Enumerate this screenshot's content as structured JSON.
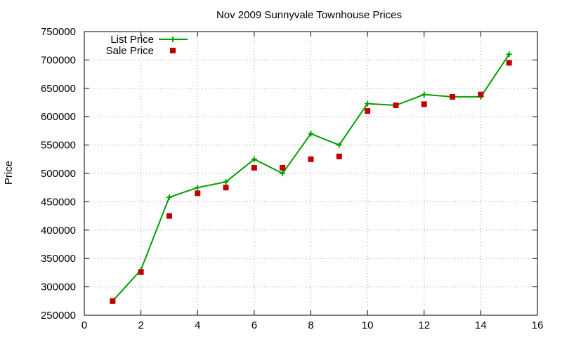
{
  "chart_data": {
    "type": "line",
    "title": "Nov 2009 Sunnyvale Townhouse Prices",
    "xlabel": "",
    "ylabel": "Price",
    "xlim": [
      0,
      16
    ],
    "ylim": [
      250000,
      750000
    ],
    "xticks": [
      0,
      2,
      4,
      6,
      8,
      10,
      12,
      14,
      16
    ],
    "yticks": [
      250000,
      300000,
      350000,
      400000,
      450000,
      500000,
      550000,
      600000,
      650000,
      700000,
      750000
    ],
    "grid": true,
    "legend_position": "top-left",
    "series": [
      {
        "name": "List Price",
        "style": "linespoints",
        "marker": "plus",
        "color": "#00a000",
        "x": [
          1,
          2,
          3,
          4,
          5,
          6,
          7,
          8,
          9,
          10,
          11,
          12,
          13,
          14,
          15
        ],
        "values": [
          275000,
          330000,
          458000,
          475000,
          485000,
          525000,
          500000,
          570000,
          550000,
          623000,
          620000,
          639000,
          635000,
          635000,
          710000
        ]
      },
      {
        "name": "Sale Price",
        "style": "points",
        "marker": "square",
        "color": "#c00000",
        "x": [
          1,
          2,
          3,
          4,
          5,
          6,
          7,
          8,
          9,
          10,
          11,
          12,
          13,
          14,
          15
        ],
        "values": [
          275000,
          326000,
          425000,
          465000,
          475000,
          510000,
          510000,
          525000,
          530000,
          610000,
          620000,
          622000,
          635000,
          639000,
          695000
        ]
      }
    ]
  }
}
